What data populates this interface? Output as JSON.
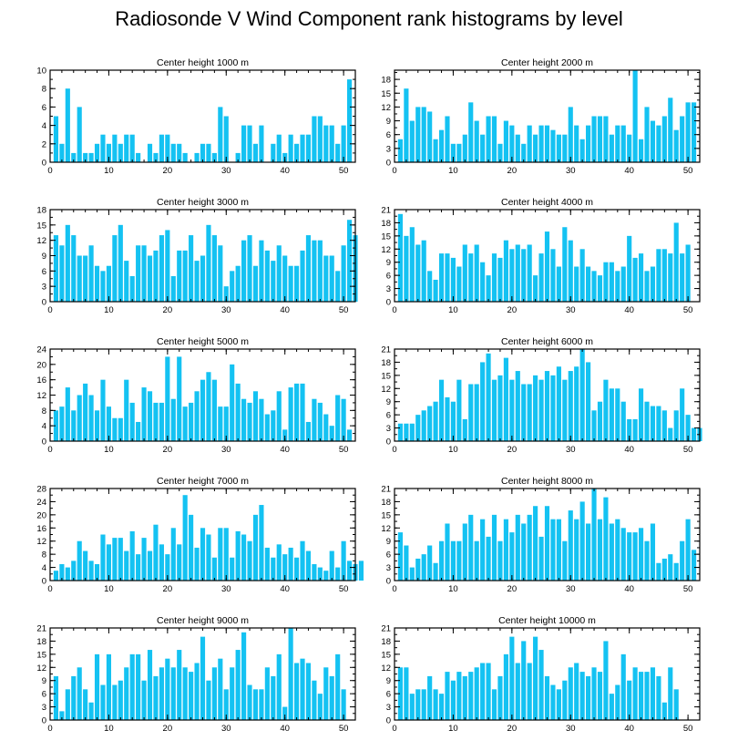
{
  "title": "Radiosonde V Wind Component rank histograms by level",
  "bar_color": "#14C2F2",
  "chart_data": [
    {
      "type": "bar",
      "title": "Center height 1000 m",
      "xlim": [
        0,
        52
      ],
      "ylim": [
        0,
        10
      ],
      "xticks": [
        0,
        10,
        20,
        30,
        40,
        50
      ],
      "yticks": [
        0,
        2,
        4,
        6,
        8,
        10
      ],
      "values": [
        5,
        2,
        8,
        1,
        6,
        1,
        1,
        2,
        3,
        2,
        3,
        2,
        3,
        3,
        1,
        0,
        2,
        1,
        3,
        3,
        2,
        2,
        1,
        0,
        1,
        2,
        2,
        1,
        6,
        5,
        0,
        1,
        4,
        4,
        2,
        4,
        0,
        2,
        3,
        1,
        3,
        2,
        3,
        3,
        5,
        5,
        4,
        4,
        2,
        4,
        9
      ]
    },
    {
      "type": "bar",
      "title": "Center height 2000 m",
      "xlim": [
        0,
        52
      ],
      "ylim": [
        0,
        20
      ],
      "xticks": [
        0,
        10,
        20,
        30,
        40,
        50
      ],
      "yticks": [
        0,
        3,
        6,
        9,
        12,
        15,
        18
      ],
      "values": [
        5,
        16,
        9,
        12,
        12,
        11,
        5,
        7,
        10,
        4,
        4,
        6,
        13,
        9,
        6,
        10,
        10,
        4,
        9,
        8,
        6,
        4,
        8,
        6,
        8,
        8,
        7,
        6,
        6,
        12,
        8,
        5,
        8,
        10,
        10,
        10,
        6,
        8,
        8,
        6,
        20,
        5,
        12,
        9,
        8,
        10,
        14,
        7,
        10,
        13,
        13
      ]
    },
    {
      "type": "bar",
      "title": "Center height 3000 m",
      "xlim": [
        0,
        52
      ],
      "ylim": [
        0,
        18
      ],
      "xticks": [
        0,
        10,
        20,
        30,
        40,
        50
      ],
      "yticks": [
        0,
        3,
        6,
        9,
        12,
        15,
        18
      ],
      "values": [
        13,
        11,
        15,
        13,
        9,
        9,
        11,
        7,
        6,
        7,
        13,
        15,
        8,
        5,
        11,
        11,
        9,
        10,
        13,
        14,
        5,
        10,
        10,
        13,
        8,
        9,
        15,
        13,
        11,
        3,
        6,
        7,
        12,
        13,
        7,
        12,
        10,
        8,
        11,
        9,
        7,
        7,
        10,
        13,
        12,
        12,
        9,
        9,
        6,
        11,
        16,
        13
      ]
    },
    {
      "type": "bar",
      "title": "Center height 4000 m",
      "xlim": [
        0,
        52
      ],
      "ylim": [
        0,
        21
      ],
      "xticks": [
        0,
        10,
        20,
        30,
        40,
        50
      ],
      "yticks": [
        0,
        3,
        6,
        9,
        12,
        15,
        18,
        21
      ],
      "values": [
        20,
        15,
        17,
        13,
        14,
        7,
        5,
        11,
        11,
        10,
        8,
        13,
        11,
        13,
        9,
        6,
        11,
        10,
        14,
        12,
        13,
        12,
        13,
        6,
        11,
        16,
        12,
        8,
        17,
        14,
        8,
        12,
        8,
        7,
        6,
        9,
        9,
        7,
        8,
        15,
        10,
        11,
        7,
        8,
        12,
        12,
        11,
        18,
        11,
        13
      ]
    },
    {
      "type": "bar",
      "title": "Center height 5000 m",
      "xlim": [
        0,
        52
      ],
      "ylim": [
        0,
        24
      ],
      "xticks": [
        0,
        10,
        20,
        30,
        40,
        50
      ],
      "yticks": [
        0,
        4,
        8,
        12,
        16,
        20,
        24
      ],
      "values": [
        8,
        9,
        14,
        8,
        12,
        15,
        12,
        8,
        16,
        9,
        6,
        6,
        16,
        10,
        5,
        14,
        13,
        10,
        10,
        22,
        11,
        22,
        9,
        10,
        13,
        16,
        18,
        16,
        9,
        9,
        20,
        15,
        11,
        10,
        13,
        11,
        7,
        8,
        13,
        3,
        14,
        15,
        15,
        5,
        11,
        10,
        7,
        4,
        12,
        11,
        3
      ]
    },
    {
      "type": "bar",
      "title": "Center height 6000 m",
      "xlim": [
        0,
        52
      ],
      "ylim": [
        0,
        21
      ],
      "xticks": [
        0,
        10,
        20,
        30,
        40,
        50
      ],
      "yticks": [
        0,
        3,
        6,
        9,
        12,
        15,
        18,
        21
      ],
      "values": [
        4,
        4,
        4,
        6,
        7,
        8,
        9,
        14,
        10,
        9,
        14,
        5,
        13,
        13,
        18,
        20,
        14,
        15,
        19,
        14,
        16,
        13,
        13,
        15,
        14,
        16,
        15,
        17,
        14,
        16,
        17,
        21,
        18,
        7,
        9,
        14,
        12,
        12,
        9,
        5,
        5,
        12,
        9,
        8,
        8,
        7,
        3,
        7,
        12,
        6,
        3,
        3
      ]
    },
    {
      "type": "bar",
      "title": "Center height 7000 m",
      "xlim": [
        0,
        52
      ],
      "ylim": [
        0,
        28
      ],
      "xticks": [
        0,
        10,
        20,
        30,
        40,
        50
      ],
      "yticks": [
        0,
        4,
        8,
        12,
        16,
        20,
        24,
        28
      ],
      "values": [
        3,
        5,
        4,
        6,
        12,
        9,
        6,
        5,
        14,
        11,
        13,
        13,
        9,
        15,
        8,
        13,
        9,
        17,
        11,
        8,
        16,
        11,
        26,
        20,
        10,
        16,
        14,
        7,
        16,
        16,
        7,
        15,
        14,
        12,
        20,
        23,
        10,
        7,
        11,
        8,
        10,
        7,
        12,
        9,
        5,
        4,
        3,
        9,
        4,
        12,
        6,
        5,
        6
      ]
    },
    {
      "type": "bar",
      "title": "Center height 8000 m",
      "xlim": [
        0,
        52
      ],
      "ylim": [
        0,
        21
      ],
      "xticks": [
        0,
        10,
        20,
        30,
        40,
        50
      ],
      "yticks": [
        0,
        3,
        6,
        9,
        12,
        15,
        18,
        21
      ],
      "values": [
        11,
        8,
        3,
        5,
        6,
        8,
        4,
        9,
        13,
        9,
        9,
        13,
        15,
        9,
        14,
        10,
        15,
        9,
        14,
        11,
        15,
        13,
        15,
        17,
        10,
        17,
        14,
        14,
        9,
        16,
        14,
        18,
        13,
        21,
        14,
        19,
        13,
        14,
        12,
        11,
        11,
        12,
        9,
        13,
        4,
        5,
        6,
        4,
        9,
        14,
        7
      ]
    },
    {
      "type": "bar",
      "title": "Center height 9000 m",
      "xlim": [
        0,
        52
      ],
      "ylim": [
        0,
        21
      ],
      "xticks": [
        0,
        10,
        20,
        30,
        40,
        50
      ],
      "yticks": [
        0,
        3,
        6,
        9,
        12,
        15,
        18,
        21
      ],
      "values": [
        10,
        2,
        7,
        10,
        12,
        7,
        4,
        15,
        8,
        15,
        8,
        9,
        12,
        15,
        15,
        9,
        16,
        10,
        12,
        14,
        12,
        16,
        12,
        11,
        13,
        19,
        9,
        12,
        14,
        7,
        12,
        16,
        20,
        8,
        7,
        7,
        12,
        10,
        15,
        3,
        21,
        13,
        14,
        13,
        9,
        6,
        12,
        10,
        15,
        7
      ]
    },
    {
      "type": "bar",
      "title": "Center height 10000 m",
      "xlim": [
        0,
        52
      ],
      "ylim": [
        0,
        21
      ],
      "xticks": [
        0,
        10,
        20,
        30,
        40,
        50
      ],
      "yticks": [
        0,
        3,
        6,
        9,
        12,
        15,
        18,
        21
      ],
      "values": [
        12,
        12,
        6,
        7,
        7,
        10,
        7,
        6,
        11,
        9,
        11,
        10,
        11,
        12,
        13,
        13,
        7,
        10,
        15,
        19,
        13,
        18,
        13,
        19,
        16,
        10,
        8,
        7,
        9,
        12,
        13,
        11,
        10,
        12,
        11,
        18,
        6,
        8,
        15,
        9,
        12,
        11,
        11,
        12,
        10,
        4,
        12,
        7
      ]
    }
  ]
}
